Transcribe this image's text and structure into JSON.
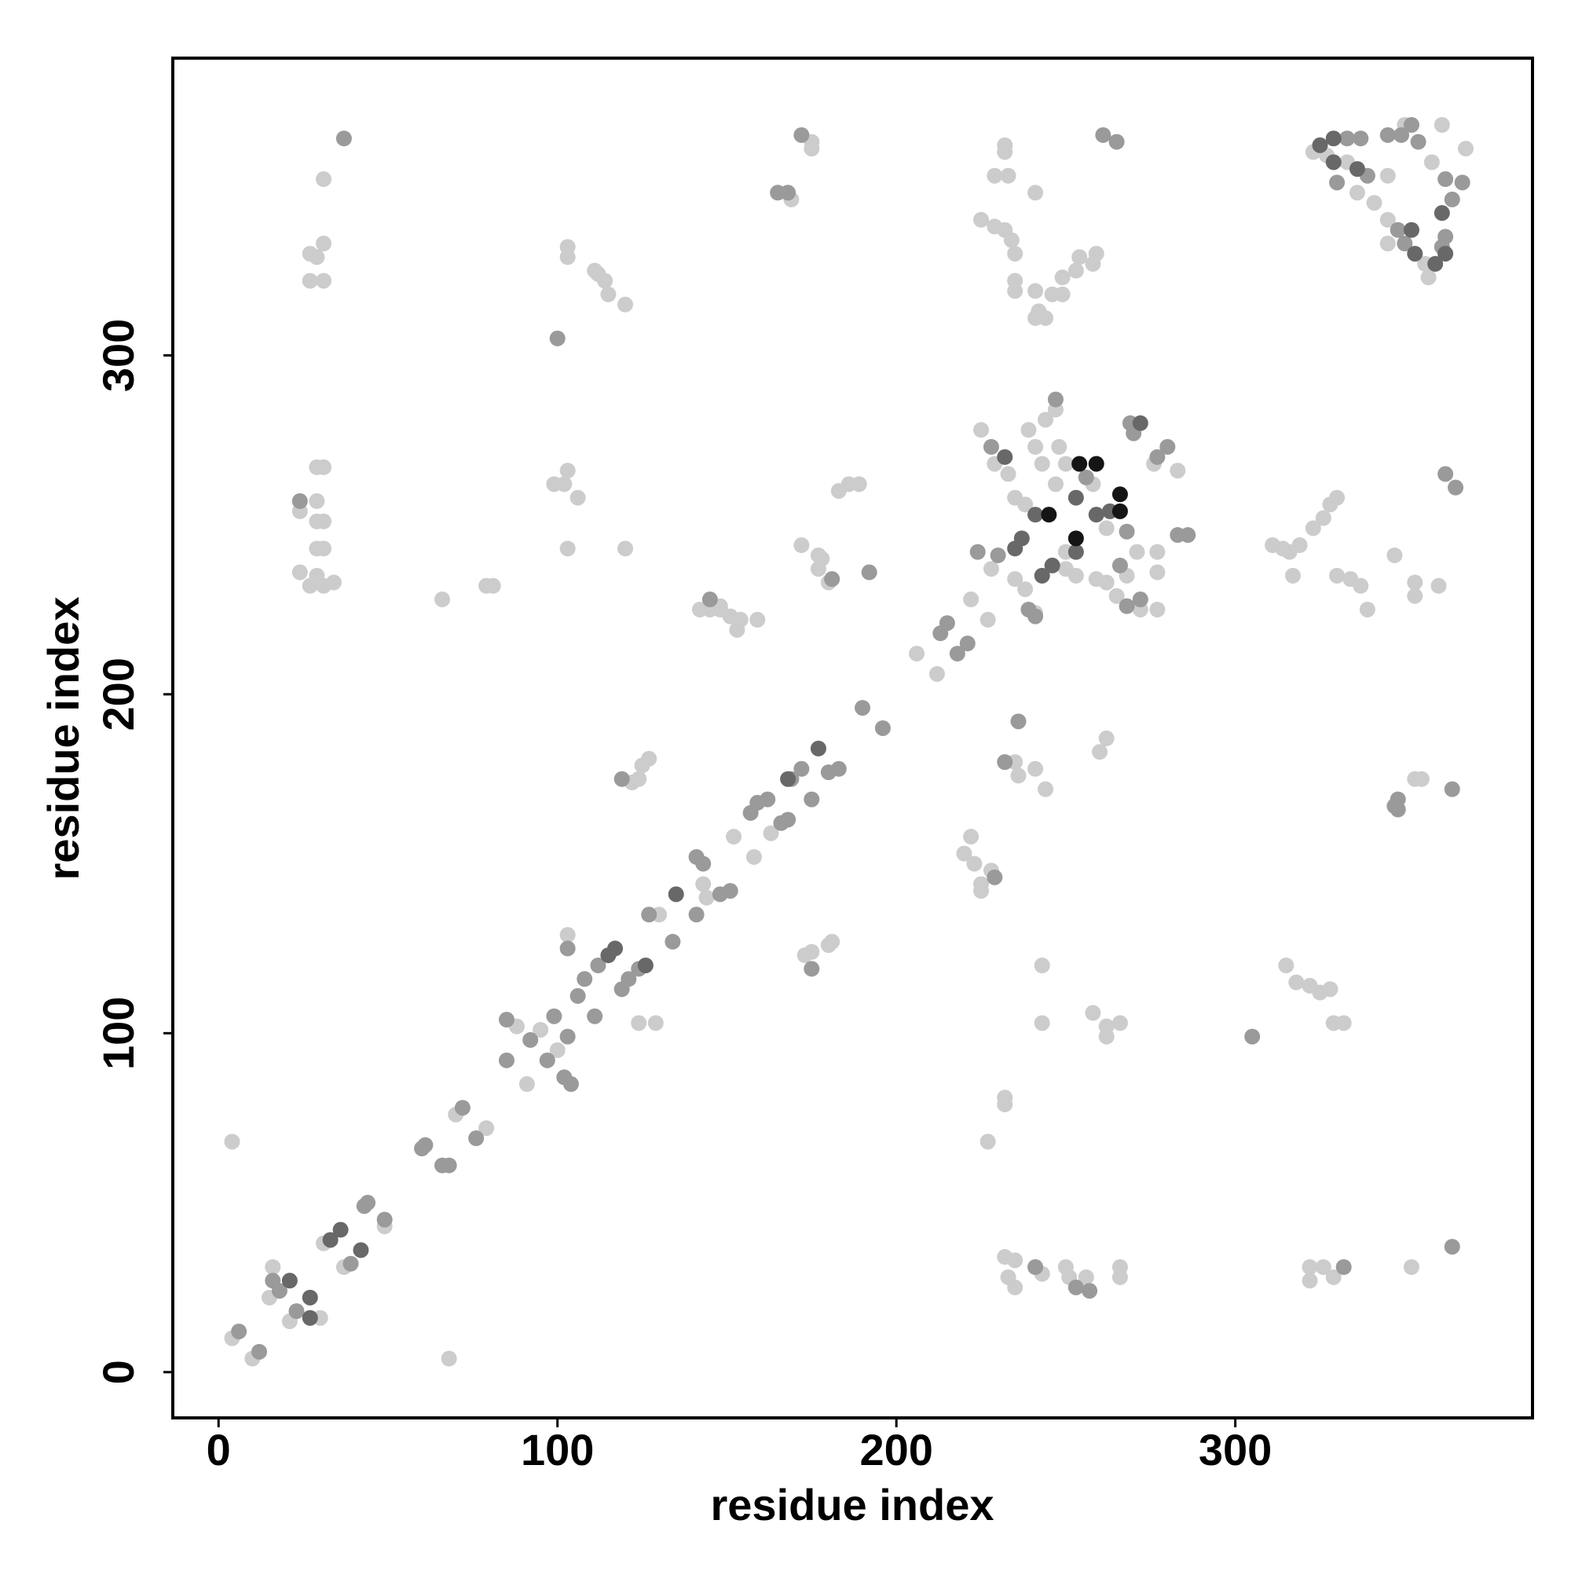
{
  "chart_data": {
    "type": "scatter",
    "xlabel": "residue index",
    "ylabel": "residue index",
    "xlim": [
      -13.5,
      387.7
    ],
    "ylim": [
      -13.5,
      387.7
    ],
    "xticks": [
      0,
      100,
      200,
      300
    ],
    "yticks": [
      0,
      100,
      200,
      300
    ],
    "series": [
      {
        "color": "#cccccc",
        "x": [
          4,
          10,
          4,
          68,
          16,
          15,
          21,
          30,
          31,
          37,
          49,
          70,
          79,
          88,
          91,
          95,
          100,
          103,
          124,
          129,
          130,
          143,
          144,
          152,
          158,
          163,
          206,
          212,
          227,
          222,
          228,
          235,
          238,
          241,
          250,
          258,
          262,
          271,
          277,
          277,
          268,
          262,
          259,
          253,
          250,
          265,
          272,
          277,
          225,
          229,
          233,
          235,
          238,
          239,
          241,
          243,
          244,
          247,
          248,
          250,
          247,
          276,
          283,
          232,
          232,
          229,
          233,
          241,
          225,
          229,
          232,
          234,
          235,
          235,
          235,
          241,
          242,
          241,
          244,
          246,
          249,
          249,
          253,
          254,
          258,
          259,
          31,
          27,
          29,
          31,
          27,
          31,
          103,
          103,
          111,
          112,
          114,
          115,
          120,
          175,
          175,
          169,
          24,
          29,
          29,
          31,
          29,
          31,
          29,
          31,
          24,
          29,
          31,
          34,
          27,
          66,
          79,
          81,
          99,
          103,
          102,
          106,
          103,
          120,
          172,
          177,
          178,
          177,
          180,
          183,
          186,
          189,
          142,
          148,
          151,
          154,
          159,
          153,
          145,
          148,
          124,
          125,
          127,
          122,
          173,
          175,
          180,
          181,
          222,
          220,
          223,
          225,
          228,
          225,
          235,
          236,
          241,
          244,
          260,
          262,
          243,
          243,
          258,
          262,
          262,
          266,
          232,
          232,
          227,
          232,
          235,
          233,
          235,
          243,
          250,
          251,
          256,
          266,
          266,
          322,
          322,
          326,
          329,
          352,
          315,
          318,
          322,
          325,
          328,
          329,
          332,
          353,
          355,
          311,
          314,
          316,
          319,
          323,
          326,
          328,
          330,
          317,
          330,
          334,
          337,
          339,
          347,
          353,
          353,
          360,
          323,
          327,
          333,
          336,
          341,
          345,
          350,
          361,
          358,
          368,
          345,
          345,
          356,
          357
        ],
        "y": [
          10,
          4,
          68,
          4,
          31,
          22,
          15,
          16,
          38,
          31,
          43,
          76,
          72,
          102,
          85,
          101,
          95,
          129,
          103,
          103,
          135,
          144,
          140,
          158,
          152,
          159,
          212,
          206,
          222,
          228,
          237,
          234,
          231,
          224,
          242,
          262,
          249,
          242,
          242,
          236,
          235,
          233,
          234,
          235,
          237,
          229,
          225,
          225,
          278,
          268,
          265,
          258,
          256,
          278,
          273,
          268,
          281,
          284,
          273,
          268,
          262,
          268,
          266,
          362,
          360,
          353,
          353,
          348,
          340,
          338,
          337,
          334,
          330,
          322,
          319,
          319,
          313,
          311,
          311,
          318,
          323,
          318,
          325,
          329,
          327,
          330,
          352,
          330,
          329,
          333,
          322,
          322,
          332,
          329,
          325,
          324,
          322,
          318,
          315,
          363,
          361,
          346,
          254,
          257,
          251,
          251,
          267,
          267,
          243,
          243,
          236,
          235,
          232,
          233,
          232,
          228,
          232,
          232,
          262,
          266,
          262,
          258,
          243,
          243,
          244,
          241,
          240,
          237,
          233,
          260,
          262,
          262,
          225,
          225,
          223,
          222,
          222,
          219,
          225,
          226,
          175,
          179,
          181,
          174,
          123,
          124,
          126,
          127,
          158,
          153,
          150,
          144,
          148,
          142,
          180,
          176,
          178,
          172,
          183,
          187,
          120,
          103,
          106,
          102,
          99,
          103,
          81,
          79,
          68,
          34,
          33,
          28,
          25,
          29,
          31,
          28,
          28,
          31,
          28,
          31,
          27,
          31,
          28,
          31,
          120,
          115,
          114,
          112,
          113,
          103,
          103,
          175,
          175,
          244,
          243,
          242,
          244,
          249,
          252,
          256,
          258,
          235,
          235,
          234,
          232,
          225,
          241,
          233,
          229,
          232,
          360,
          359,
          357,
          348,
          345,
          353,
          368,
          368,
          357,
          361,
          340,
          333,
          327,
          323
        ]
      },
      {
        "color": "#9a9a9a",
        "x": [
          6,
          12,
          16,
          18,
          23,
          39,
          43,
          44,
          49,
          60,
          61,
          66,
          68,
          72,
          76,
          85,
          85,
          92,
          99,
          97,
          103,
          102,
          104,
          103,
          106,
          111,
          108,
          112,
          119,
          121,
          124,
          127,
          134,
          141,
          141,
          143,
          148,
          151,
          157,
          159,
          162,
          166,
          168,
          169,
          172,
          175,
          180,
          183,
          190,
          196,
          213,
          215,
          218,
          221,
          224,
          230,
          239,
          256,
          283,
          286,
          268,
          266,
          272,
          228,
          247,
          269,
          270,
          277,
          280,
          241,
          268,
          37,
          100,
          172,
          165,
          168,
          24,
          181,
          192,
          145,
          119,
          175,
          229,
          232,
          236,
          241,
          253,
          257,
          332,
          364,
          305,
          348,
          347,
          348,
          364,
          362,
          365,
          261,
          265,
          333,
          337,
          330,
          339,
          345,
          349,
          352,
          354,
          362,
          367,
          364,
          348,
          350,
          361,
          362
        ],
        "y": [
          12,
          6,
          27,
          24,
          18,
          32,
          49,
          50,
          45,
          66,
          67,
          61,
          61,
          78,
          69,
          92,
          104,
          98,
          105,
          92,
          99,
          87,
          85,
          125,
          111,
          105,
          116,
          120,
          113,
          116,
          119,
          135,
          127,
          135,
          152,
          150,
          141,
          142,
          165,
          168,
          169,
          162,
          163,
          175,
          178,
          169,
          177,
          178,
          196,
          190,
          218,
          221,
          212,
          215,
          242,
          241,
          225,
          264,
          247,
          247,
          226,
          238,
          228,
          273,
          287,
          280,
          277,
          270,
          273,
          223,
          248,
          364,
          305,
          365,
          348,
          348,
          257,
          234,
          236,
          228,
          175,
          119,
          146,
          180,
          192,
          31,
          25,
          24,
          31,
          37,
          99,
          169,
          167,
          166,
          172,
          265,
          261,
          365,
          363,
          364,
          364,
          351,
          353,
          365,
          365,
          368,
          363,
          352,
          351,
          346,
          337,
          333,
          332,
          335
        ]
      },
      {
        "color": "#686868",
        "x": [
          21,
          27,
          27,
          33,
          36,
          42,
          115,
          117,
          126,
          135,
          168,
          177,
          235,
          237,
          241,
          243,
          246,
          253,
          253,
          259,
          263,
          232,
          272,
          325,
          329,
          329,
          336,
          361,
          352,
          353,
          359,
          362
        ],
        "y": [
          27,
          22,
          16,
          39,
          42,
          36,
          123,
          125,
          120,
          141,
          175,
          184,
          243,
          246,
          253,
          235,
          238,
          242,
          258,
          253,
          254,
          270,
          280,
          362,
          364,
          357,
          355,
          342,
          337,
          330,
          327,
          330
        ]
      },
      {
        "color": "#151515",
        "x": [
          245,
          253,
          254,
          259,
          266,
          266
        ],
        "y": [
          253,
          246,
          268,
          268,
          259,
          254
        ]
      }
    ]
  }
}
